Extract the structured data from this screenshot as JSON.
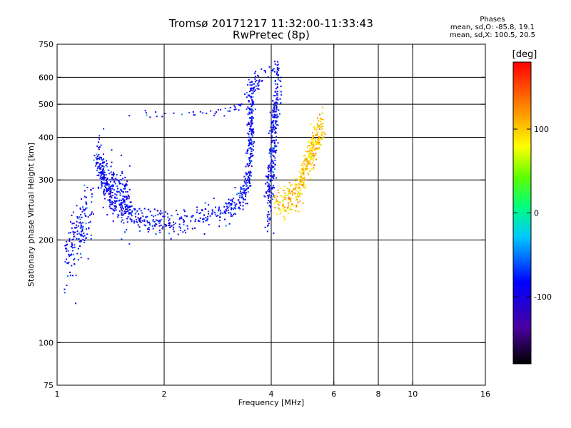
{
  "chart_data": {
    "type": "scatter",
    "title": "Tromsø 20171217 11:32:00-11:33:43",
    "subtitle": "RwPretec (8p)",
    "xlabel": "Frequency [MHz]",
    "ylabel": "Stationary phase Virtual Height [km]",
    "xscale": "log",
    "yscale": "log",
    "xlim": [
      1,
      16
    ],
    "ylim": [
      75,
      750
    ],
    "x_ticks": [
      1,
      2,
      4,
      6,
      8,
      10,
      16
    ],
    "x_tick_labels": [
      "1",
      "2",
      "4",
      "6",
      "8",
      "10",
      "16"
    ],
    "x_grid_lines": [
      2,
      4,
      6,
      8,
      10
    ],
    "y_ticks": [
      75,
      100,
      200,
      300,
      400,
      500,
      600,
      750
    ],
    "y_tick_labels": [
      "75",
      "100",
      "200",
      "300",
      "400",
      "500",
      "600",
      "750"
    ],
    "y_grid_lines": [
      100,
      200,
      300,
      400,
      500,
      600
    ],
    "grid": true,
    "colorbar": {
      "label": "[deg]",
      "range": [
        -180,
        180
      ],
      "ticks": [
        100,
        0,
        -100
      ],
      "tick_labels": [
        "100",
        "0",
        "-100"
      ],
      "colormap": "rainbow (black-purple-blue-cyan-green-yellow-orange-red)"
    },
    "phase_info": {
      "title": "Phases",
      "line_o": "mean, sd,O: -85.8, 19.1",
      "line_x": "mean, sd,X: 100.5, 20.5"
    },
    "trace_segments": [
      {
        "mode": "O",
        "phase_mean": -85.8,
        "phase_sd": 19.1,
        "points": [
          [
            1.05,
            175
          ],
          [
            1.1,
            195
          ],
          [
            1.15,
            210
          ],
          [
            1.2,
            230
          ],
          [
            1.25,
            250
          ]
        ],
        "spread_km": 22,
        "density": 160
      },
      {
        "mode": "O",
        "phase_mean": -85.8,
        "phase_sd": 19.1,
        "points": [
          [
            1.3,
            350
          ],
          [
            1.35,
            290
          ],
          [
            1.45,
            260
          ],
          [
            1.6,
            240
          ],
          [
            1.8,
            228
          ],
          [
            2.1,
            225
          ],
          [
            2.5,
            232
          ],
          [
            3.0,
            245
          ],
          [
            3.3,
            262
          ],
          [
            3.45,
            300
          ],
          [
            3.5,
            380
          ],
          [
            3.5,
            460
          ],
          [
            3.55,
            580
          ]
        ],
        "spread_km": 10,
        "density": 700
      },
      {
        "mode": "O",
        "phase_mean": -85.8,
        "phase_sd": 19.1,
        "points": [
          [
            1.3,
            360
          ],
          [
            1.4,
            300
          ],
          [
            1.5,
            270
          ],
          [
            1.6,
            250
          ]
        ],
        "spread_km": 28,
        "density": 200
      },
      {
        "mode": "O",
        "phase_mean": -85.8,
        "phase_sd": 19.1,
        "points": [
          [
            1.5,
            470
          ],
          [
            2.0,
            470
          ],
          [
            2.6,
            472
          ],
          [
            3.0,
            480
          ],
          [
            3.3,
            500
          ]
        ],
        "spread_km": 6,
        "density": 40
      },
      {
        "mode": "O",
        "phase_mean": -85.8,
        "phase_sd": 19.1,
        "points": [
          [
            3.4,
            520
          ],
          [
            3.55,
            560
          ],
          [
            3.7,
            600
          ],
          [
            4.0,
            640
          ],
          [
            4.2,
            640
          ]
        ],
        "spread_km": 25,
        "density": 60
      },
      {
        "mode": "O",
        "phase_mean": -85.8,
        "phase_sd": 19.1,
        "points": [
          [
            3.9,
            260
          ],
          [
            4.0,
            300
          ],
          [
            4.05,
            380
          ],
          [
            4.1,
            460
          ],
          [
            4.2,
            580
          ]
        ],
        "spread_km": 35,
        "density": 280
      },
      {
        "mode": "X",
        "phase_mean": 100.5,
        "phase_sd": 20.5,
        "points": [
          [
            4.1,
            255
          ],
          [
            4.4,
            262
          ],
          [
            4.7,
            275
          ],
          [
            4.9,
            300
          ],
          [
            5.1,
            340
          ],
          [
            5.3,
            375
          ],
          [
            5.5,
            400
          ]
        ],
        "spread_km": 15,
        "density": 300
      },
      {
        "mode": "X",
        "phase_mean": 100.5,
        "phase_sd": 20.5,
        "points": [
          [
            4.9,
            330
          ],
          [
            5.2,
            380
          ],
          [
            5.4,
            420
          ],
          [
            5.6,
            440
          ]
        ],
        "spread_km": 20,
        "density": 90
      }
    ]
  }
}
